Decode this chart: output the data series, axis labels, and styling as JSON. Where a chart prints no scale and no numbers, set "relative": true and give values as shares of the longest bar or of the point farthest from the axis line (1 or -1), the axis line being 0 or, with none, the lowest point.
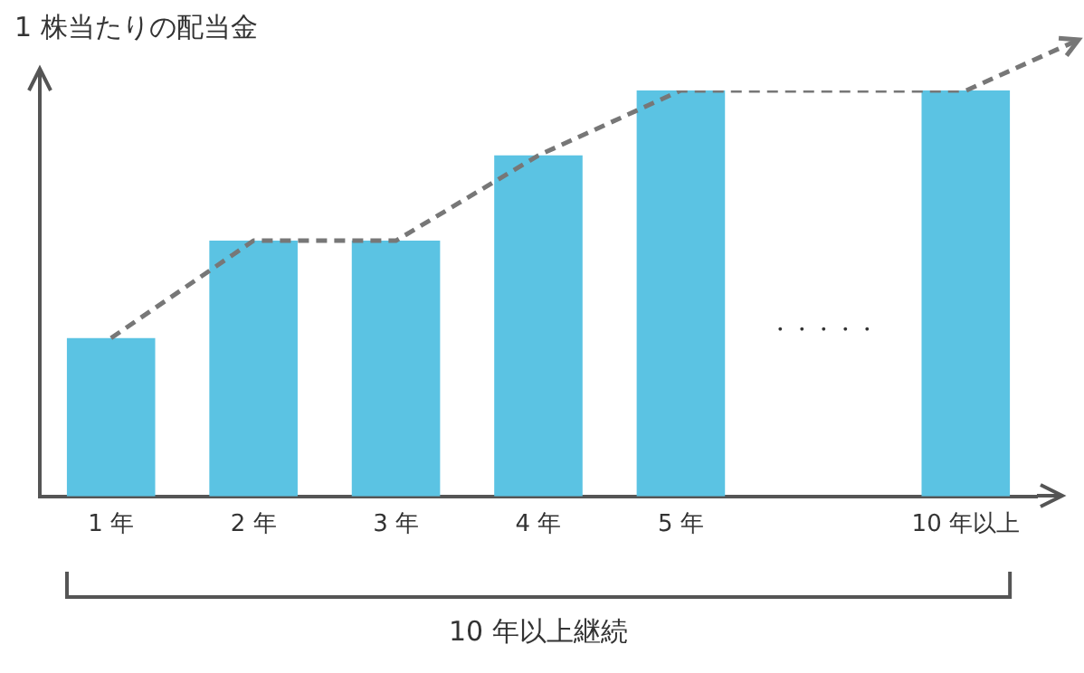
{
  "chart_data": {
    "type": "bar",
    "ylabel": "1 株当たりの配当金",
    "categories": [
      "1 年",
      "2 年",
      "3 年",
      "4 年",
      "5 年",
      null,
      "10 年以上"
    ],
    "series": [
      {
        "color": "#5bc3e3",
        "values": [
          0.39,
          0.63,
          0.63,
          0.84,
          1,
          null,
          1
        ]
      },
      {
        "type": "line",
        "color": "#777777",
        "line_style": "dashed",
        "values": [
          0.39,
          0.63,
          0.63,
          0.84,
          1,
          1,
          1
        ]
      }
    ],
    "relative": true,
    "grid": false,
    "legend": false,
    "marker": "none",
    "annotations": [
      "・・・・・",
      "10 年以上継続"
    ]
  }
}
